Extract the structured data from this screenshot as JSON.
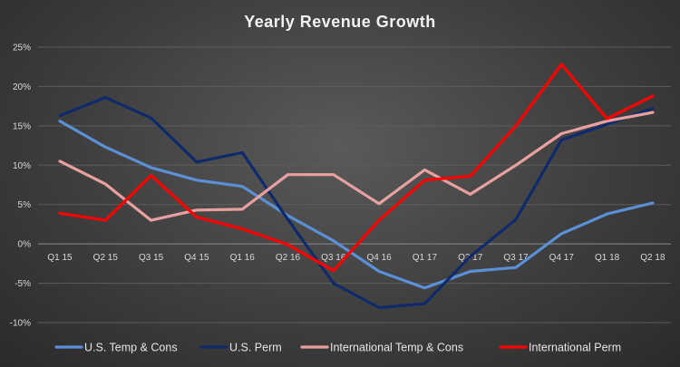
{
  "chart_data": {
    "type": "line",
    "title": "Yearly Revenue Growth",
    "xlabel": "",
    "ylabel": "",
    "categories": [
      "Q1 15",
      "Q2 15",
      "Q3 15",
      "Q4 15",
      "Q1 16",
      "Q2 16",
      "Q3 16",
      "Q4 16",
      "Q1 17",
      "Q2 17",
      "Q3 17",
      "Q4 17",
      "Q1 18",
      "Q2 18"
    ],
    "ylim": [
      -10,
      25
    ],
    "yticks": [
      -10,
      -5,
      0,
      5,
      10,
      15,
      20,
      25
    ],
    "ytick_labels": [
      "-10%",
      "-5%",
      "0%",
      "5%",
      "10%",
      "15%",
      "20%",
      "25%"
    ],
    "grid": true,
    "legend_position": "bottom",
    "series": [
      {
        "name": "U.S. Temp & Cons",
        "color": "#5b8fd6",
        "values": [
          15.6,
          12.3,
          9.7,
          8.1,
          7.3,
          3.6,
          0.4,
          -3.5,
          -5.6,
          -3.5,
          -3.0,
          1.3,
          3.8,
          5.2
        ]
      },
      {
        "name": "U.S. Perm",
        "color": "#0f2a6b",
        "values": [
          16.3,
          18.6,
          16.0,
          10.4,
          11.6,
          3.1,
          -5.0,
          -8.1,
          -7.6,
          -1.6,
          3.1,
          13.2,
          15.2,
          17.2
        ]
      },
      {
        "name": "International Temp & Cons",
        "color": "#e8a0a0",
        "values": [
          10.5,
          7.6,
          3.0,
          4.3,
          4.4,
          8.8,
          8.8,
          5.1,
          9.4,
          6.3,
          10.0,
          14.0,
          15.6,
          16.7
        ]
      },
      {
        "name": "International Perm",
        "color": "#ff0000",
        "values": [
          3.9,
          3.0,
          8.7,
          3.4,
          1.9,
          -0.1,
          -3.4,
          3.0,
          8.1,
          8.6,
          15.0,
          22.8,
          15.9,
          18.8
        ]
      }
    ]
  }
}
